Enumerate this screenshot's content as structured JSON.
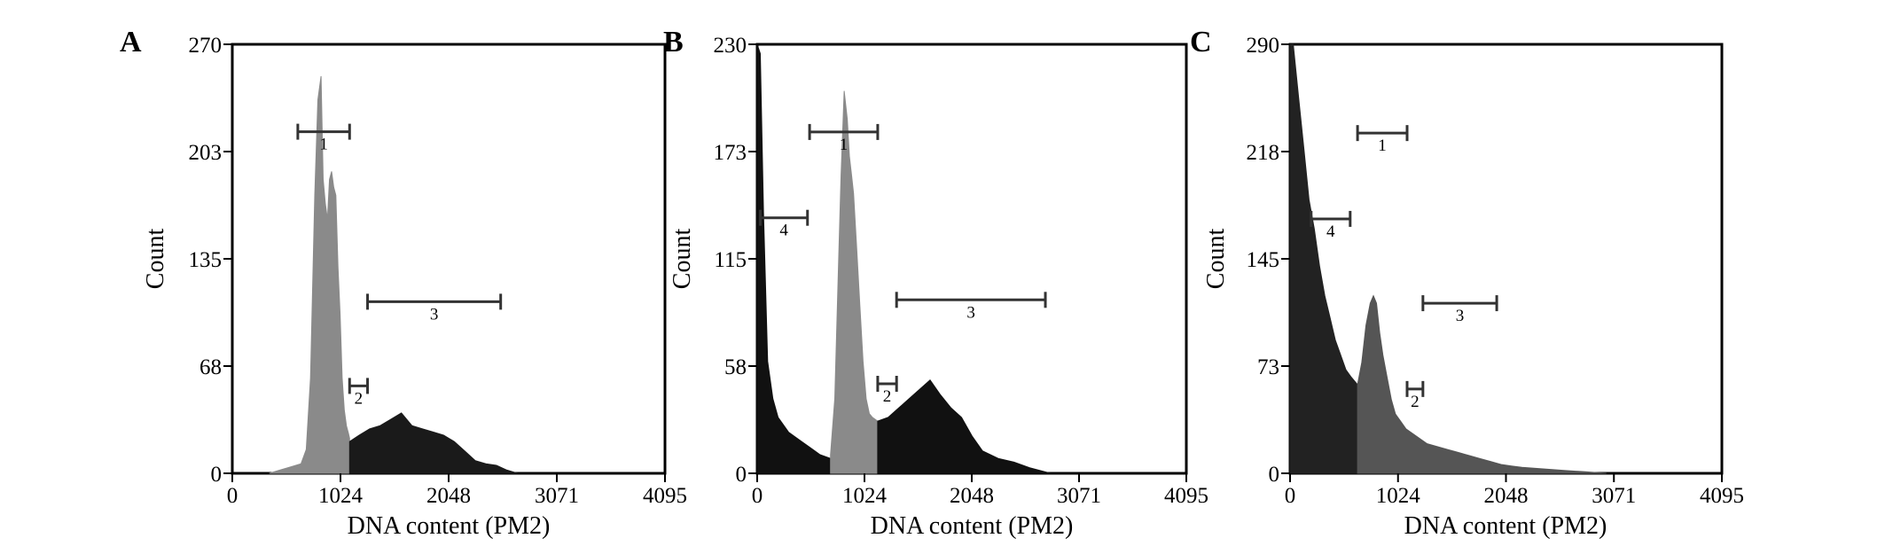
{
  "chart_data": [
    {
      "type": "histogram",
      "panel": "A",
      "xlabel": "DNA content (PM2)",
      "ylabel": "Count",
      "xlim": [
        0,
        4095
      ],
      "ylim": [
        0,
        270
      ],
      "xticks": [
        "0",
        "1024",
        "2048",
        "3071",
        "4095"
      ],
      "yticks": [
        "0",
        "68",
        "135",
        "203",
        "270"
      ],
      "grid": false,
      "gates": [
        {
          "label": "1",
          "x_start": 620,
          "x_end": 1110,
          "y": 215
        },
        {
          "label": "2",
          "x_start": 1110,
          "x_end": 1280,
          "y": 55
        },
        {
          "label": "3",
          "x_start": 1280,
          "x_end": 2540,
          "y": 108
        }
      ],
      "series": [
        {
          "color": "#8a8a8a",
          "x": [
            350,
            450,
            550,
            650,
            700,
            740,
            780,
            810,
            840,
            860,
            880,
            900,
            920,
            940,
            960,
            980,
            1000,
            1020,
            1040,
            1060,
            1080,
            1100,
            1110
          ],
          "y": [
            0,
            2,
            4,
            6,
            15,
            60,
            175,
            235,
            250,
            185,
            170,
            160,
            185,
            190,
            180,
            175,
            130,
            100,
            60,
            40,
            30,
            25,
            22
          ]
        },
        {
          "color": "#1a1a1a",
          "x": [
            1110,
            1200,
            1300,
            1400,
            1500,
            1600,
            1700,
            1800,
            1900,
            2000,
            2100,
            2200,
            2300,
            2400,
            2500,
            2600,
            2700
          ],
          "y": [
            20,
            24,
            28,
            30,
            34,
            38,
            30,
            28,
            26,
            24,
            20,
            14,
            8,
            6,
            5,
            2,
            0
          ]
        }
      ]
    },
    {
      "type": "histogram",
      "panel": "B",
      "xlabel": "DNA content (PM2)",
      "ylabel": "Count",
      "xlim": [
        0,
        4095
      ],
      "ylim": [
        0,
        230
      ],
      "xticks": [
        "0",
        "1024",
        "2048",
        "3071",
        "4095"
      ],
      "yticks": [
        "0",
        "58",
        "115",
        "173",
        "230"
      ],
      "grid": false,
      "gates": [
        {
          "label": "1",
          "x_start": 500,
          "x_end": 1150,
          "y": 183
        },
        {
          "label": "2",
          "x_start": 1150,
          "x_end": 1330,
          "y": 48
        },
        {
          "label": "3",
          "x_start": 1330,
          "x_end": 2750,
          "y": 93
        },
        {
          "label": "4",
          "x_start": 30,
          "x_end": 480,
          "y": 137
        }
      ],
      "series": [
        {
          "color": "#111111",
          "x": [
            0,
            30,
            60,
            100,
            150,
            200,
            300,
            400,
            500,
            600,
            700
          ],
          "y": [
            230,
            225,
            140,
            60,
            40,
            30,
            22,
            18,
            14,
            10,
            8
          ]
        },
        {
          "color": "#8a8a8a",
          "x": [
            700,
            740,
            780,
            800,
            830,
            860,
            880,
            900,
            920,
            950,
            980,
            1010,
            1040,
            1070,
            1100,
            1150
          ],
          "y": [
            10,
            40,
            120,
            160,
            205,
            190,
            170,
            160,
            150,
            120,
            90,
            60,
            40,
            32,
            30,
            28
          ]
        },
        {
          "color": "#111111",
          "x": [
            1150,
            1250,
            1350,
            1450,
            1550,
            1650,
            1750,
            1850,
            1950,
            2050,
            2150,
            2300,
            2450,
            2600,
            2800
          ],
          "y": [
            28,
            30,
            35,
            40,
            45,
            50,
            42,
            35,
            30,
            20,
            12,
            8,
            6,
            3,
            0
          ]
        }
      ]
    },
    {
      "type": "histogram",
      "panel": "C",
      "xlabel": "DNA content (PM2)",
      "ylabel": "Count",
      "xlim": [
        0,
        4095
      ],
      "ylim": [
        0,
        290
      ],
      "xticks": [
        "0",
        "1024",
        "2048",
        "3071",
        "4095"
      ],
      "yticks": [
        "0",
        "73",
        "145",
        "218",
        "290"
      ],
      "grid": false,
      "gates": [
        {
          "label": "1",
          "x_start": 640,
          "x_end": 1110,
          "y": 230
        },
        {
          "label": "2",
          "x_start": 1110,
          "x_end": 1260,
          "y": 57
        },
        {
          "label": "3",
          "x_start": 1260,
          "x_end": 1960,
          "y": 115
        },
        {
          "label": "4",
          "x_start": 200,
          "x_end": 570,
          "y": 172
        }
      ],
      "series": [
        {
          "color": "#222222",
          "x": [
            0,
            30,
            80,
            130,
            180,
            230,
            280,
            330,
            380,
            430,
            480,
            530,
            580,
            640
          ],
          "y": [
            290,
            290,
            255,
            220,
            185,
            165,
            140,
            120,
            105,
            90,
            80,
            70,
            65,
            60
          ]
        },
        {
          "color": "#555555",
          "x": [
            640,
            680,
            720,
            760,
            790,
            820,
            850,
            880,
            920,
            960,
            1000,
            1050,
            1100,
            1200,
            1300,
            1400,
            1500,
            1600,
            1700,
            1800,
            1900,
            2000,
            2100,
            2200,
            2400,
            2600,
            2800,
            3000
          ],
          "y": [
            60,
            75,
            100,
            115,
            120,
            115,
            95,
            80,
            65,
            50,
            40,
            35,
            30,
            25,
            20,
            18,
            16,
            14,
            12,
            10,
            8,
            6,
            5,
            4,
            3,
            2,
            1,
            0
          ]
        }
      ]
    }
  ],
  "panels": [
    {
      "id": "A",
      "ylabel": "Count",
      "xlabel": "DNA content (PM2)",
      "xticks": [
        "0",
        "1024",
        "2048",
        "3071",
        "4095"
      ],
      "yticks": [
        "0",
        "68",
        "135",
        "203",
        "270"
      ],
      "gates": [
        "1",
        "2",
        "3"
      ]
    },
    {
      "id": "B",
      "ylabel": "Count",
      "xlabel": "DNA content (PM2)",
      "xticks": [
        "0",
        "1024",
        "2048",
        "3071",
        "4095"
      ],
      "yticks": [
        "0",
        "58",
        "115",
        "173",
        "230"
      ],
      "gates": [
        "1",
        "2",
        "3",
        "4"
      ]
    },
    {
      "id": "C",
      "ylabel": "Count",
      "xlabel": "DNA content (PM2)",
      "xticks": [
        "0",
        "1024",
        "2048",
        "3071",
        "4095"
      ],
      "yticks": [
        "0",
        "73",
        "145",
        "218",
        "290"
      ],
      "gates": [
        "1",
        "2",
        "3",
        "4"
      ]
    }
  ]
}
